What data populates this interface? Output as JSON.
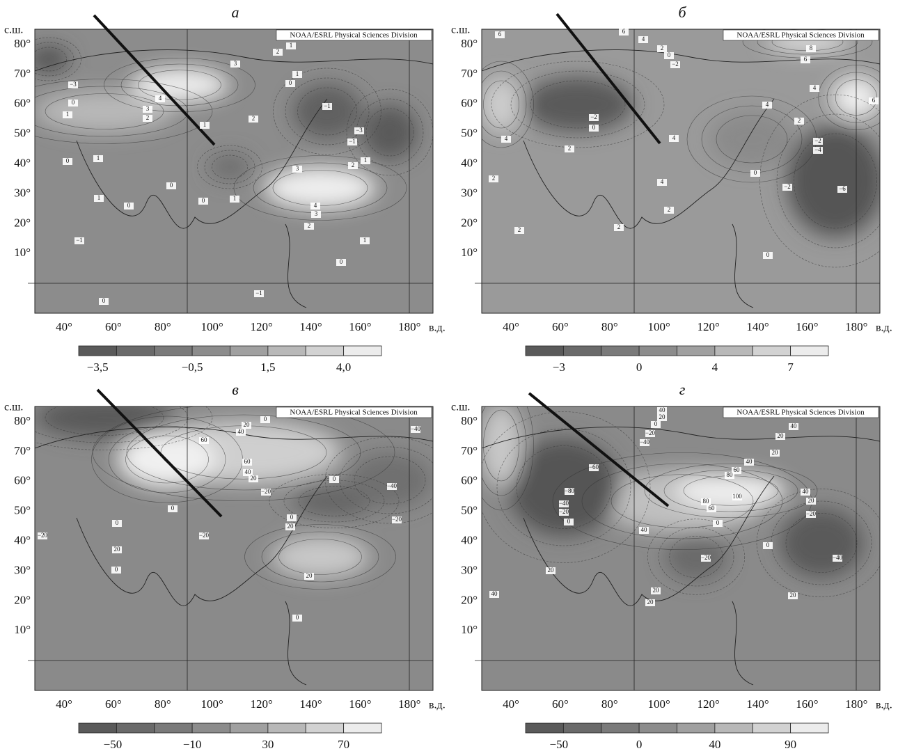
{
  "panels": [
    {
      "letter": "а",
      "credit": "NOAA/ESRL Physical Sciences Division",
      "lat_unit": "с.ш.",
      "lon_unit": "в.д.",
      "lat_labels": [
        "80°",
        "70°",
        "60°",
        "50°",
        "40°",
        "30°",
        "20°",
        "10°"
      ],
      "lon_labels": [
        "40°",
        "60°",
        "80°",
        "100°",
        "120°",
        "140°",
        "160°",
        "180°"
      ],
      "colorbar_labels": [
        "−3,5",
        "−0,5",
        "1,5",
        "4,0"
      ],
      "contour_labels": [
        "1",
        "2",
        "3",
        "−3",
        "0",
        "1",
        "4",
        "3",
        "2",
        "0",
        "1",
        "−1",
        "−3",
        "−1",
        "2",
        "1",
        "1",
        "0",
        "3",
        "2",
        "1",
        "0",
        "0",
        "1",
        "1",
        "0",
        "4",
        "3",
        "2",
        "1",
        "−1",
        "0",
        "−1",
        "0"
      ]
    },
    {
      "letter": "б",
      "credit": "NOAA/ESRL Physical Sciences Division",
      "lat_unit": "с.ш.",
      "lon_unit": "в.д.",
      "lat_labels": [
        "80°",
        "70°",
        "60°",
        "50°",
        "40°",
        "30°",
        "20°",
        "10°"
      ],
      "lon_labels": [
        "40°",
        "60°",
        "80°",
        "100°",
        "120°",
        "140°",
        "160°",
        "180°"
      ],
      "colorbar_labels": [
        "−3",
        "0",
        "4",
        "7"
      ],
      "contour_labels": [
        "6",
        "6",
        "4",
        "2",
        "0",
        "−2",
        "8",
        "6",
        "4",
        "4",
        "−2",
        "0",
        "4",
        "2",
        "4",
        "2",
        "−2",
        "−4",
        "6",
        "0",
        "−2",
        "−6",
        "4",
        "2",
        "2",
        "2",
        "2",
        "0"
      ]
    },
    {
      "letter": "в",
      "credit": "NOAA/ESRL Physical Sciences Division",
      "lat_unit": "с.ш.",
      "lon_unit": "в.д.",
      "lat_labels": [
        "80°",
        "70°",
        "60°",
        "50°",
        "40°",
        "30°",
        "20°",
        "10°"
      ],
      "lon_labels": [
        "40°",
        "60°",
        "80°",
        "100°",
        "120°",
        "140°",
        "160°",
        "180°"
      ],
      "colorbar_labels": [
        "−50",
        "−10",
        "30",
        "70"
      ],
      "contour_labels": [
        "0",
        "20",
        "40",
        "60",
        "60",
        "40",
        "20",
        "−20",
        "0",
        "−40",
        "0",
        "0",
        "20",
        "−20",
        "−20",
        "−40",
        "0",
        "20",
        "0",
        "−20",
        "20",
        "0"
      ]
    },
    {
      "letter": "г",
      "credit": "NOAA/ESRL Physical Sciences Division",
      "lat_unit": "с.ш.",
      "lon_unit": "в.д.",
      "lat_labels": [
        "80°",
        "70°",
        "60°",
        "50°",
        "40°",
        "30°",
        "20°",
        "10°"
      ],
      "lon_labels": [
        "40°",
        "60°",
        "80°",
        "100°",
        "120°",
        "140°",
        "160°",
        "180°"
      ],
      "colorbar_labels": [
        "−50",
        "0",
        "40",
        "90"
      ],
      "contour_labels": [
        "40",
        "20",
        "0",
        "−20",
        "−40",
        "−60",
        "40",
        "20",
        "20",
        "40",
        "60",
        "80",
        "100",
        "−80",
        "−40",
        "−20",
        "0",
        "80",
        "60",
        "0",
        "40",
        "40",
        "20",
        "−20",
        "0",
        "−20",
        "−40",
        "20",
        "40",
        "20",
        "20",
        "20"
      ]
    }
  ]
}
